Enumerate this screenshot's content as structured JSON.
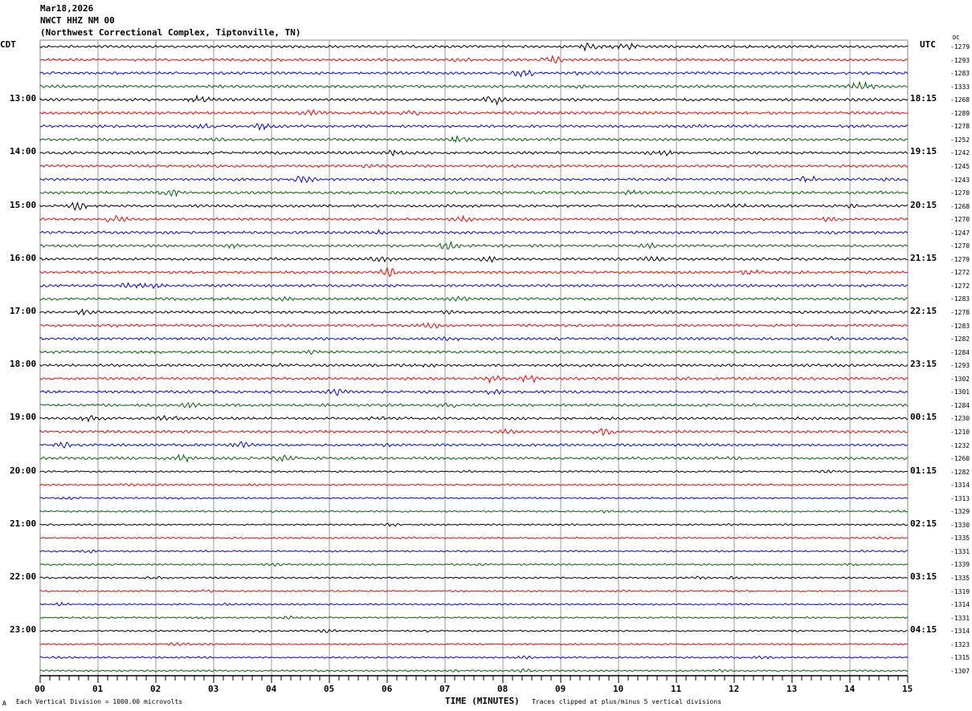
{
  "header": {
    "date": "Mar18,2026",
    "station": "NWCT HHZ NM 00",
    "location": "(Northwest Correctional Complex, Tiptonville, TN)"
  },
  "left_tz": "CDT",
  "right_tz": "UTC",
  "dc_header": "DC",
  "footer": {
    "scale": "Each Vertical Division = 1000.00 microvolts",
    "xlabel": "TIME (MINUTES)",
    "clip": "Traces clipped at plus/minus 5 vertical divisions",
    "corner": "A"
  },
  "chart_data": {
    "type": "line",
    "title": "NWCT HHZ NM 00 helicorder",
    "xlabel": "TIME (MINUTES)",
    "xlim": [
      0,
      15
    ],
    "x_ticks": [
      "00",
      "01",
      "02",
      "03",
      "04",
      "05",
      "06",
      "07",
      "08",
      "09",
      "10",
      "11",
      "12",
      "13",
      "14",
      "15"
    ],
    "trace_colors": [
      "#000000",
      "#ff0000",
      "#0000ff",
      "#006400"
    ],
    "left_hour_labels": [
      "13:00",
      "14:00",
      "15:00",
      "16:00",
      "17:00",
      "18:00",
      "19:00",
      "20:00",
      "21:00",
      "22:00",
      "23:00"
    ],
    "right_hour_labels": [
      "18:15",
      "19:15",
      "20:15",
      "21:15",
      "22:15",
      "23:15",
      "00:15",
      "01:15",
      "02:15",
      "03:15",
      "04:15"
    ],
    "dc_offsets": [
      "-1279",
      "-1293",
      "-1283",
      "-1333",
      "-1268",
      "-1289",
      "-1278",
      "-1252",
      "-1242",
      "-1245",
      "-1243",
      "-1270",
      "-1268",
      "-1270",
      "-1247",
      "-1270",
      "-1279",
      "-1272",
      "-1272",
      "-1283",
      "-1278",
      "-1283",
      "-1282",
      "-1284",
      "-1293",
      "-1302",
      "-1301",
      "-1284",
      "-1230",
      "-1210",
      "-1232",
      "-1260",
      "-1282",
      "-1314",
      "-1313",
      "-1329",
      "-1330",
      "-1335",
      "-1331",
      "-1339",
      "-1335",
      "-1319",
      "-1314",
      "-1331",
      "-1314",
      "-1323",
      "-1315",
      "-1307"
    ],
    "vertical_division_microvolts": 1000.0,
    "clip_divisions": 5
  }
}
